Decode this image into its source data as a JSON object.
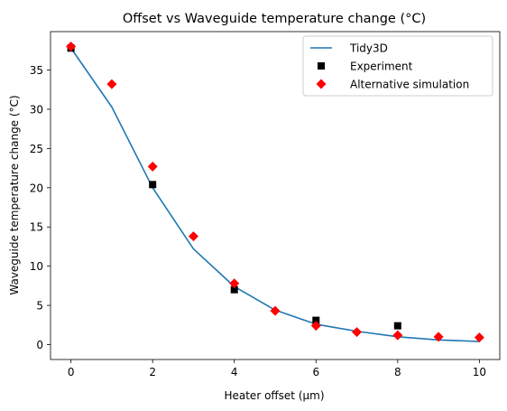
{
  "chart_data": {
    "type": "line",
    "title": "Offset vs Waveguide temperature change (°C)",
    "xlabel": "Heater offset (μm)",
    "ylabel": "Waveguide temperature change (°C)",
    "xlim": [
      -0.5,
      10.5
    ],
    "ylim": [
      -1.9,
      39.9
    ],
    "xticks": [
      0,
      2,
      4,
      6,
      8,
      10
    ],
    "yticks": [
      0,
      5,
      10,
      15,
      20,
      25,
      30,
      35
    ],
    "grid": false,
    "legend_position": "top-right",
    "series": [
      {
        "name": "Tidy3D",
        "kind": "line",
        "color": "#1f77b4",
        "x": [
          0,
          1,
          2,
          3,
          4,
          5,
          6,
          7,
          8,
          9,
          10
        ],
        "y": [
          37.8,
          30.3,
          20.0,
          12.2,
          7.4,
          4.4,
          2.6,
          1.7,
          1.0,
          0.6,
          0.4
        ]
      },
      {
        "name": "Experiment",
        "kind": "scatter",
        "marker": "square",
        "color": "#000000",
        "x": [
          0,
          2,
          4,
          6,
          8
        ],
        "y": [
          37.8,
          20.4,
          7.0,
          3.1,
          2.4
        ]
      },
      {
        "name": "Alternative simulation",
        "kind": "scatter",
        "marker": "diamond",
        "color": "#ff0000",
        "x": [
          0,
          1,
          2,
          3,
          4,
          5,
          6,
          7,
          8,
          9,
          10
        ],
        "y": [
          38.0,
          33.2,
          22.7,
          13.8,
          7.8,
          4.3,
          2.4,
          1.6,
          1.2,
          1.0,
          0.9
        ]
      }
    ]
  }
}
